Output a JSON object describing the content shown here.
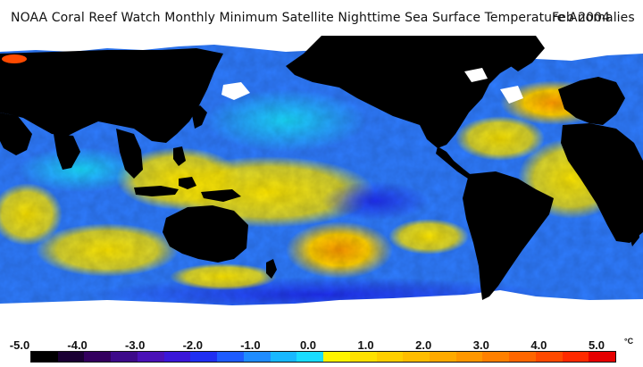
{
  "header": {
    "title": "NOAA Coral Reef Watch Monthly Minimum Satellite Nighttime Sea Surface Temperature Anomalies",
    "date": "Feb 2004"
  },
  "legend": {
    "tick_labels": [
      "-5.0",
      "-4.0",
      "-3.0",
      "-2.0",
      "-1.0",
      "0.0",
      "1.0",
      "2.0",
      "3.0",
      "4.0",
      "5.0"
    ],
    "unit": "°C",
    "colors": [
      "#000000",
      "#1a0033",
      "#33005e",
      "#3d0a8a",
      "#4a11b8",
      "#3a17d9",
      "#1f2ff2",
      "#1e5cff",
      "#1f8cff",
      "#18b8ff",
      "#1adcff",
      "#fff400",
      "#ffe100",
      "#ffcf00",
      "#ffbd00",
      "#ffaa00",
      "#ff9700",
      "#ff8000",
      "#ff6600",
      "#ff4a00",
      "#ff2a00",
      "#e60000"
    ]
  },
  "map": {
    "land_color": "#000000",
    "ice_color": "#ffffff",
    "ocean_base_color": "#2f7cff"
  }
}
